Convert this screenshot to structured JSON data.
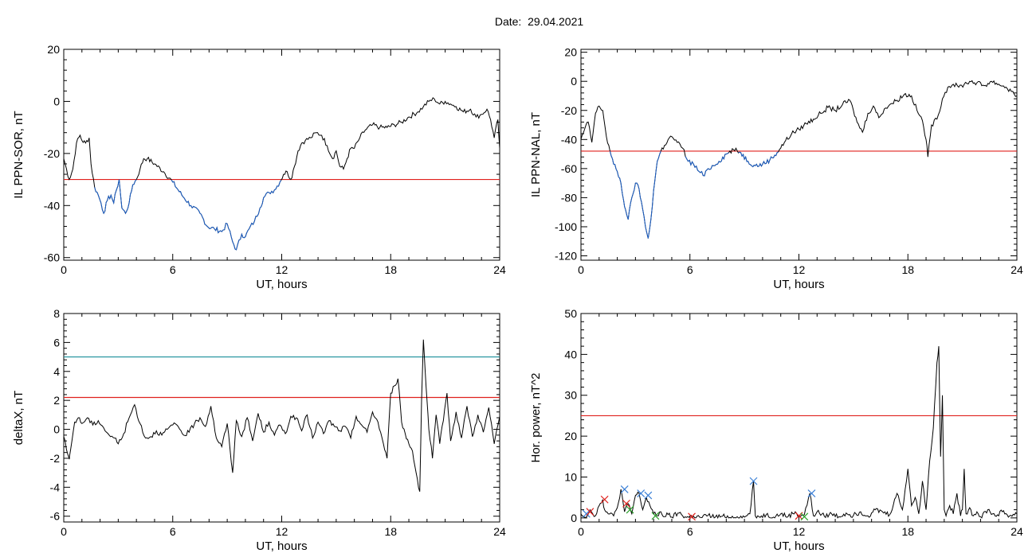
{
  "header": {
    "date_label": "Date:",
    "date_value": "29.04.2021"
  },
  "colors": {
    "data": "#000000",
    "below": "#1a5fc8",
    "threshold_red": "#e0201c",
    "threshold_teal": "#1a8f9a",
    "marker_red": "#e0201c",
    "marker_blue": "#3a7fd6",
    "marker_green": "#2aa02a"
  },
  "chart_data": [
    {
      "id": "sor",
      "type": "line",
      "ylabel": "IL PPN-SOR, nT",
      "xlabel": "UT, hours",
      "xlim": [
        0,
        24
      ],
      "ylim": [
        -61,
        20
      ],
      "xticks": [
        0,
        6,
        12,
        18,
        24
      ],
      "yticks": [
        -60,
        -40,
        -20,
        0,
        20
      ],
      "threshold": -30,
      "highlight_below_threshold": true,
      "series": [
        {
          "x": [
            0,
            0.3,
            0.5,
            0.7,
            0.9,
            1.0,
            1.2,
            1.4,
            1.5,
            1.7,
            1.9,
            2.05,
            2.2,
            2.4,
            2.6,
            2.75,
            2.9,
            3.05,
            3.2,
            3.4,
            3.6,
            3.8,
            4.0,
            4.2,
            4.4,
            4.6,
            5.0,
            5.5,
            6.0,
            6.5,
            7.0,
            7.5,
            7.9,
            8.3,
            8.7,
            9.0,
            9.3,
            9.5,
            9.8,
            10.0,
            10.2,
            10.5,
            10.8,
            11.0,
            11.3,
            11.6,
            11.9,
            12.1,
            12.3,
            12.5,
            12.7,
            12.9,
            13.1,
            13.3,
            13.6,
            13.9,
            14.2,
            14.5,
            14.8,
            15.0,
            15.2,
            15.4,
            15.6,
            15.8,
            16.0,
            16.3,
            16.6,
            17.0,
            17.4,
            17.8,
            18.2,
            18.6,
            19.0,
            19.5,
            19.8,
            20.1,
            20.4,
            20.7,
            21.0,
            21.3,
            21.6,
            22.0,
            22.4,
            22.7,
            23.0,
            23.3,
            23.5,
            23.7,
            23.9,
            24.0
          ],
          "y": [
            -22,
            -30,
            -26,
            -16,
            -13,
            -15,
            -16,
            -14,
            -24,
            -33,
            -36,
            -39,
            -43,
            -38,
            -36,
            -39,
            -34,
            -30,
            -41,
            -43,
            -39,
            -32,
            -30,
            -26,
            -22,
            -22,
            -24,
            -27,
            -31,
            -36,
            -40,
            -43,
            -48,
            -49,
            -50,
            -47,
            -54,
            -57,
            -51,
            -52,
            -49,
            -46,
            -41,
            -37,
            -35,
            -34,
            -31,
            -28,
            -27,
            -30,
            -25,
            -19,
            -16,
            -15,
            -14,
            -12,
            -13,
            -17,
            -22,
            -19,
            -25,
            -26,
            -22,
            -18,
            -18,
            -14,
            -11,
            -9,
            -10,
            -10,
            -9,
            -8,
            -6,
            -4,
            -2,
            0,
            1,
            -1,
            0,
            -1,
            -2,
            -4,
            -3,
            -6,
            -5,
            -3,
            -7,
            -14,
            -7,
            -18
          ],
          "markers": []
        }
      ]
    },
    {
      "id": "nal",
      "type": "line",
      "ylabel": "IL PPN-NAL, nT",
      "xlabel": "UT, hours",
      "xlim": [
        0,
        24
      ],
      "ylim": [
        -123,
        22
      ],
      "xticks": [
        0,
        6,
        12,
        18,
        24
      ],
      "yticks": [
        -120,
        -100,
        -80,
        -60,
        -40,
        -20,
        0,
        20
      ],
      "threshold": -48,
      "highlight_below_threshold": true,
      "series": [
        {
          "x": [
            0,
            0.2,
            0.4,
            0.6,
            0.8,
            1.0,
            1.2,
            1.4,
            1.6,
            1.8,
            2.0,
            2.2,
            2.35,
            2.45,
            2.6,
            2.8,
            3.0,
            3.2,
            3.4,
            3.55,
            3.7,
            3.85,
            4.0,
            4.2,
            4.4,
            4.6,
            4.8,
            5.0,
            5.3,
            5.6,
            5.9,
            6.2,
            6.5,
            6.8,
            7.0,
            7.3,
            7.6,
            8.0,
            8.4,
            8.8,
            9.2,
            9.6,
            10.0,
            10.4,
            10.8,
            11.2,
            11.6,
            12.0,
            12.4,
            12.8,
            13.2,
            13.6,
            14.0,
            14.4,
            14.8,
            15.0,
            15.2,
            15.5,
            15.8,
            16.1,
            16.4,
            16.7,
            17.0,
            17.4,
            17.8,
            18.2,
            18.5,
            18.8,
            19.0,
            19.1,
            19.3,
            19.6,
            19.9,
            20.2,
            20.5,
            20.8,
            21.1,
            21.4,
            21.8,
            22.2,
            22.6,
            23.0,
            23.4,
            23.7,
            24.0
          ],
          "y": [
            -40,
            -33,
            -28,
            -42,
            -22,
            -17,
            -20,
            -38,
            -48,
            -57,
            -62,
            -70,
            -82,
            -88,
            -95,
            -80,
            -70,
            -74,
            -88,
            -100,
            -108,
            -95,
            -75,
            -55,
            -48,
            -44,
            -40,
            -38,
            -42,
            -46,
            -55,
            -57,
            -62,
            -65,
            -60,
            -58,
            -55,
            -50,
            -47,
            -49,
            -55,
            -58,
            -57,
            -54,
            -49,
            -42,
            -36,
            -33,
            -29,
            -26,
            -22,
            -18,
            -20,
            -16,
            -13,
            -20,
            -28,
            -35,
            -22,
            -17,
            -25,
            -19,
            -16,
            -13,
            -9,
            -10,
            -20,
            -27,
            -40,
            -52,
            -30,
            -26,
            -12,
            -4,
            -2,
            -4,
            -2,
            0,
            -1,
            -3,
            0,
            -2,
            -4,
            -7,
            -10
          ],
          "markers": []
        }
      ]
    },
    {
      "id": "deltax",
      "type": "line",
      "ylabel": "deltaX, nT",
      "xlabel": "UT, hours",
      "xlim": [
        0,
        24
      ],
      "ylim": [
        -6.4,
        8
      ],
      "xticks": [
        0,
        6,
        12,
        18,
        24
      ],
      "yticks": [
        -6,
        -4,
        -2,
        0,
        2,
        4,
        6,
        8
      ],
      "threshold": 2.2,
      "threshold2": 5.0,
      "highlight_below_threshold": false,
      "series": [
        {
          "x": [
            0,
            0.15,
            0.3,
            0.45,
            0.6,
            0.8,
            1.0,
            1.3,
            1.6,
            1.9,
            2.2,
            2.5,
            2.8,
            3.0,
            3.3,
            3.6,
            3.9,
            4.2,
            4.5,
            4.8,
            5.1,
            5.4,
            5.7,
            6.0,
            6.3,
            6.6,
            6.9,
            7.2,
            7.5,
            7.8,
            8.1,
            8.4,
            8.7,
            9.0,
            9.3,
            9.5,
            9.8,
            10.1,
            10.4,
            10.7,
            11.0,
            11.3,
            11.6,
            11.9,
            12.2,
            12.5,
            12.8,
            13.1,
            13.4,
            13.7,
            14.0,
            14.3,
            14.6,
            14.9,
            15.2,
            15.5,
            15.8,
            16.1,
            16.4,
            16.7,
            17.0,
            17.3,
            17.6,
            17.8,
            18.0,
            18.2,
            18.4,
            18.6,
            18.8,
            19.0,
            19.2,
            19.4,
            19.6,
            19.7,
            19.8,
            19.9,
            20.0,
            20.1,
            20.3,
            20.5,
            20.7,
            20.9,
            21.1,
            21.3,
            21.6,
            21.9,
            22.2,
            22.5,
            22.8,
            23.1,
            23.4,
            23.7,
            24.0
          ],
          "y": [
            -0.5,
            -1.4,
            -2.0,
            -0.8,
            0.5,
            0.8,
            0.4,
            0.8,
            0.3,
            0.6,
            0.1,
            -0.4,
            -0.6,
            -1.0,
            -0.3,
            0.8,
            1.7,
            0.4,
            -0.6,
            -0.5,
            -0.1,
            -0.4,
            0.0,
            0.3,
            0.2,
            -0.4,
            -0.2,
            0.4,
            0.8,
            0.2,
            1.6,
            -0.6,
            -1.2,
            0.4,
            -3.0,
            0.6,
            -0.5,
            0.8,
            -0.8,
            1.1,
            -0.2,
            0.5,
            -0.4,
            0.3,
            -0.3,
            0.9,
            0.8,
            -0.1,
            1.0,
            -0.6,
            0.5,
            -0.3,
            0.6,
            0.2,
            -0.1,
            0.2,
            -0.6,
            0.9,
            0.3,
            -0.2,
            1.2,
            0.5,
            -1.0,
            -2.0,
            2.5,
            3.0,
            3.5,
            0.5,
            -0.3,
            -1.0,
            -1.5,
            -3.0,
            -4.3,
            2.0,
            6.2,
            4.0,
            2.0,
            0.0,
            -2.0,
            1.0,
            -1.0,
            0.6,
            2.5,
            -0.8,
            1.2,
            -0.6,
            1.6,
            -0.5,
            1.0,
            -0.2,
            1.5,
            -1.0,
            0.9
          ],
          "markers": []
        }
      ]
    },
    {
      "id": "power",
      "type": "line",
      "ylabel": "Hor. power, nT^2",
      "xlabel": "UT, hours",
      "xlim": [
        0,
        24
      ],
      "ylim": [
        -1,
        50
      ],
      "xticks": [
        0,
        6,
        12,
        18,
        24
      ],
      "yticks": [
        0,
        10,
        20,
        30,
        40,
        50
      ],
      "threshold": 25,
      "highlight_below_threshold": false,
      "series": [
        {
          "x": [
            0,
            0.3,
            0.5,
            0.8,
            1.0,
            1.2,
            1.3,
            1.5,
            1.8,
            2.0,
            2.2,
            2.4,
            2.6,
            2.8,
            3.0,
            3.2,
            3.4,
            3.6,
            3.8,
            4.0,
            4.2,
            4.4,
            4.6,
            4.8,
            5.0,
            5.4,
            5.8,
            6.2,
            6.6,
            7.0,
            7.4,
            7.8,
            8.2,
            8.6,
            9.0,
            9.3,
            9.5,
            9.6,
            9.8,
            10.2,
            10.6,
            11.0,
            11.4,
            11.8,
            12.0,
            12.3,
            12.6,
            12.8,
            13.0,
            13.4,
            13.8,
            14.2,
            14.6,
            15.0,
            15.4,
            15.8,
            16.2,
            16.6,
            17.0,
            17.4,
            17.7,
            18.0,
            18.2,
            18.4,
            18.6,
            18.8,
            19.0,
            19.2,
            19.4,
            19.6,
            19.7,
            19.8,
            19.9,
            20.0,
            20.1,
            20.3,
            20.5,
            20.7,
            20.9,
            21.0,
            21.1,
            21.2,
            21.4,
            21.6,
            21.8,
            22.0,
            22.4,
            22.8,
            23.2,
            23.6,
            24.0
          ],
          "y": [
            1,
            0.3,
            2.0,
            0.5,
            3.0,
            4.5,
            2.0,
            1.0,
            0.5,
            2.5,
            7.0,
            1.5,
            3.5,
            1.0,
            5.5,
            6.0,
            2.0,
            5.0,
            3.0,
            1.0,
            0.5,
            1.5,
            0.3,
            0.8,
            0.2,
            1.2,
            0.1,
            0.4,
            0.1,
            0.6,
            0.2,
            0.4,
            0.1,
            0.3,
            0.2,
            1.0,
            9.0,
            0.5,
            0.3,
            0.8,
            0.2,
            1.0,
            0.3,
            1.5,
            0.5,
            0.8,
            6.0,
            0.5,
            1.5,
            0.4,
            1.0,
            0.3,
            1.2,
            0.6,
            1.5,
            0.5,
            2.0,
            1.5,
            0.8,
            6.0,
            2.0,
            12.0,
            3.0,
            5.0,
            1.0,
            9.0,
            2.0,
            14.0,
            22.0,
            38.0,
            42.0,
            15.0,
            30.0,
            2.0,
            0.5,
            3.0,
            1.0,
            6.0,
            0.5,
            2.0,
            12.0,
            1.0,
            2.5,
            0.5,
            1.5,
            0.3,
            2.0,
            0.5,
            1.5,
            0.5,
            1.0
          ],
          "markers": [
            {
              "x": 0.3,
              "y": 1.0,
              "color": "blue"
            },
            {
              "x": 0.5,
              "y": 1.5,
              "color": "red"
            },
            {
              "x": 1.3,
              "y": 4.5,
              "color": "red"
            },
            {
              "x": 2.4,
              "y": 7.0,
              "color": "blue"
            },
            {
              "x": 2.5,
              "y": 3.5,
              "color": "red"
            },
            {
              "x": 2.7,
              "y": 2.0,
              "color": "green"
            },
            {
              "x": 3.3,
              "y": 6.0,
              "color": "blue"
            },
            {
              "x": 3.7,
              "y": 5.5,
              "color": "blue"
            },
            {
              "x": 4.1,
              "y": 0.5,
              "color": "green"
            },
            {
              "x": 6.1,
              "y": 0.3,
              "color": "red"
            },
            {
              "x": 9.5,
              "y": 9.0,
              "color": "blue"
            },
            {
              "x": 12.0,
              "y": 0.5,
              "color": "red"
            },
            {
              "x": 12.3,
              "y": 0.3,
              "color": "green"
            },
            {
              "x": 12.7,
              "y": 6.0,
              "color": "blue"
            }
          ]
        }
      ]
    }
  ]
}
